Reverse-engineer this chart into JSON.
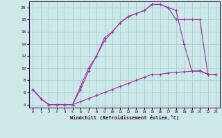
{
  "xlabel": "Windchill (Refroidissement éolien,°C)",
  "xlim": [
    -0.5,
    23.5
  ],
  "ylim": [
    3.5,
    21.0
  ],
  "yticks": [
    4,
    6,
    8,
    10,
    12,
    14,
    16,
    18,
    20
  ],
  "xticks": [
    0,
    1,
    2,
    3,
    4,
    5,
    6,
    7,
    8,
    9,
    10,
    11,
    12,
    13,
    14,
    15,
    16,
    17,
    18,
    19,
    20,
    21,
    22,
    23
  ],
  "bg_color": "#cce8e8",
  "line_color": "#993399",
  "grid_color": "#aacccc",
  "line1_x": [
    0,
    1,
    2,
    3,
    4,
    5,
    6,
    7,
    8,
    9,
    10,
    11,
    12,
    13,
    14,
    15,
    16,
    17,
    18,
    19,
    20,
    21,
    22,
    23
  ],
  "line1_y": [
    6.5,
    5.0,
    4.0,
    4.0,
    4.0,
    4.0,
    7.0,
    10.0,
    12.0,
    15.0,
    16.0,
    17.5,
    18.5,
    19.0,
    19.5,
    20.5,
    20.5,
    20.0,
    18.0,
    18.0,
    18.0,
    18.0,
    9.0,
    9.0
  ],
  "line2_x": [
    0,
    1,
    2,
    3,
    4,
    5,
    6,
    7,
    8,
    9,
    10,
    11,
    12,
    13,
    14,
    15,
    16,
    17,
    18,
    19,
    20,
    21,
    22,
    23
  ],
  "line2_y": [
    6.5,
    5.0,
    4.0,
    4.0,
    4.0,
    4.0,
    6.5,
    9.5,
    12.0,
    14.5,
    16.0,
    17.5,
    18.5,
    19.0,
    19.5,
    20.5,
    20.5,
    20.0,
    19.5,
    14.0,
    9.5,
    9.5,
    9.0,
    9.0
  ],
  "line3_x": [
    0,
    1,
    2,
    3,
    4,
    5,
    6,
    7,
    8,
    9,
    10,
    11,
    12,
    13,
    14,
    15,
    16,
    17,
    18,
    19,
    20,
    21,
    22,
    23
  ],
  "line3_y": [
    6.5,
    5.0,
    4.0,
    4.0,
    4.0,
    4.0,
    4.5,
    5.0,
    5.5,
    6.0,
    6.5,
    7.0,
    7.5,
    8.0,
    8.5,
    9.0,
    9.0,
    9.2,
    9.3,
    9.4,
    9.5,
    9.6,
    9.0,
    9.0
  ]
}
